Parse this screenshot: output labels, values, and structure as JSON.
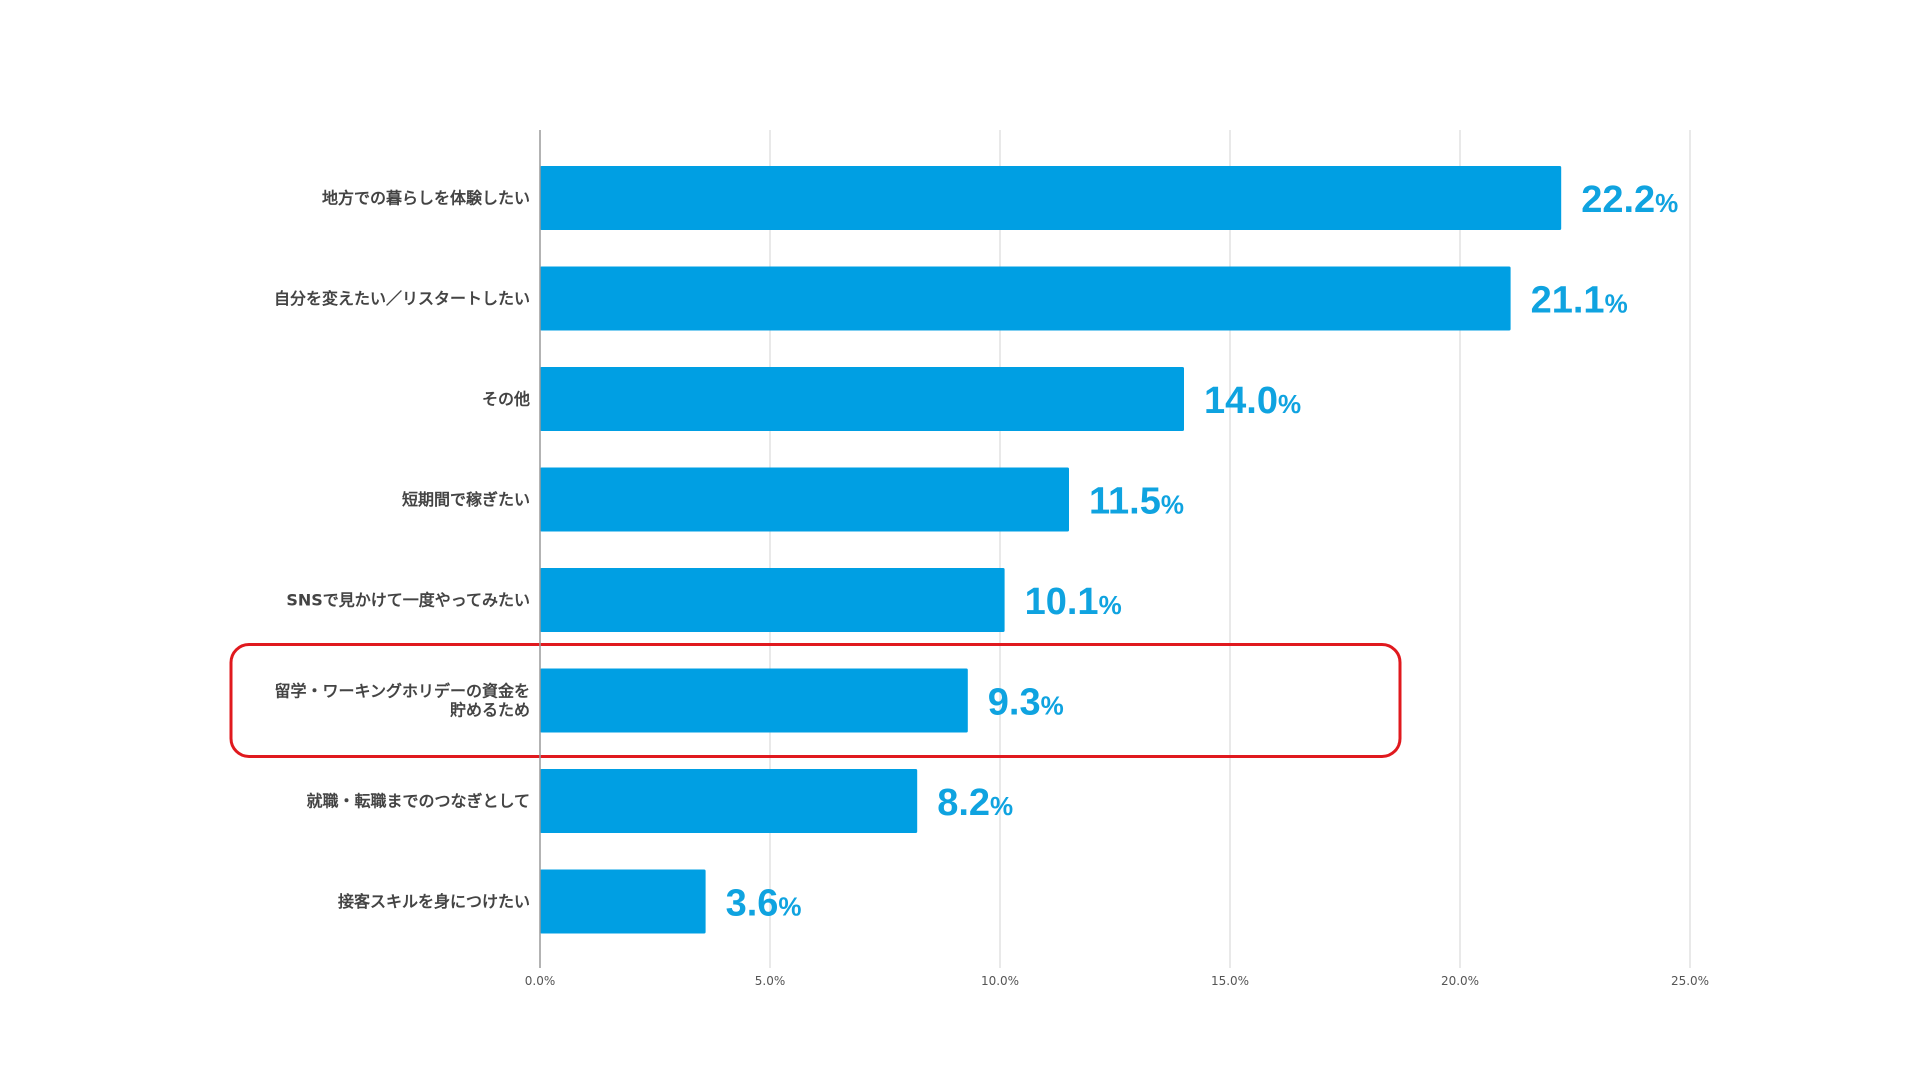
{
  "chart_data": {
    "type": "bar",
    "orientation": "horizontal",
    "categories": [
      "地方での暮らしを体験したい",
      "自分を変えたい／リスタートしたい",
      "その他",
      "短期間で稼ぎたい",
      "SNSで見かけて一度やってみたい",
      "留学・ワーキングホリデーの資金を貯めるため",
      "就職・転職までのつなぎとして",
      "接客スキルを身につけたい"
    ],
    "values": [
      22.2,
      21.1,
      14.0,
      11.5,
      10.1,
      9.3,
      8.2,
      3.6
    ],
    "value_labels": [
      "22.2",
      "21.1",
      "14.0",
      "11.5",
      "10.1",
      "9.3",
      "8.2",
      "3.6"
    ],
    "value_suffix": "%",
    "xlim": [
      0,
      25
    ],
    "x_ticks": [
      "0.0%",
      "5.0%",
      "10.0%",
      "15.0%",
      "20.0%",
      "25.0%"
    ],
    "grid": "vertical",
    "highlighted_category_index": 5,
    "title": "",
    "xlabel": "",
    "ylabel": ""
  },
  "colors": {
    "bar": "#009fe3",
    "value_text": "#0fa3e0",
    "highlight_box": "#e0191e",
    "gridline": "#e2e2e2",
    "axis": "#9a9a9a"
  }
}
